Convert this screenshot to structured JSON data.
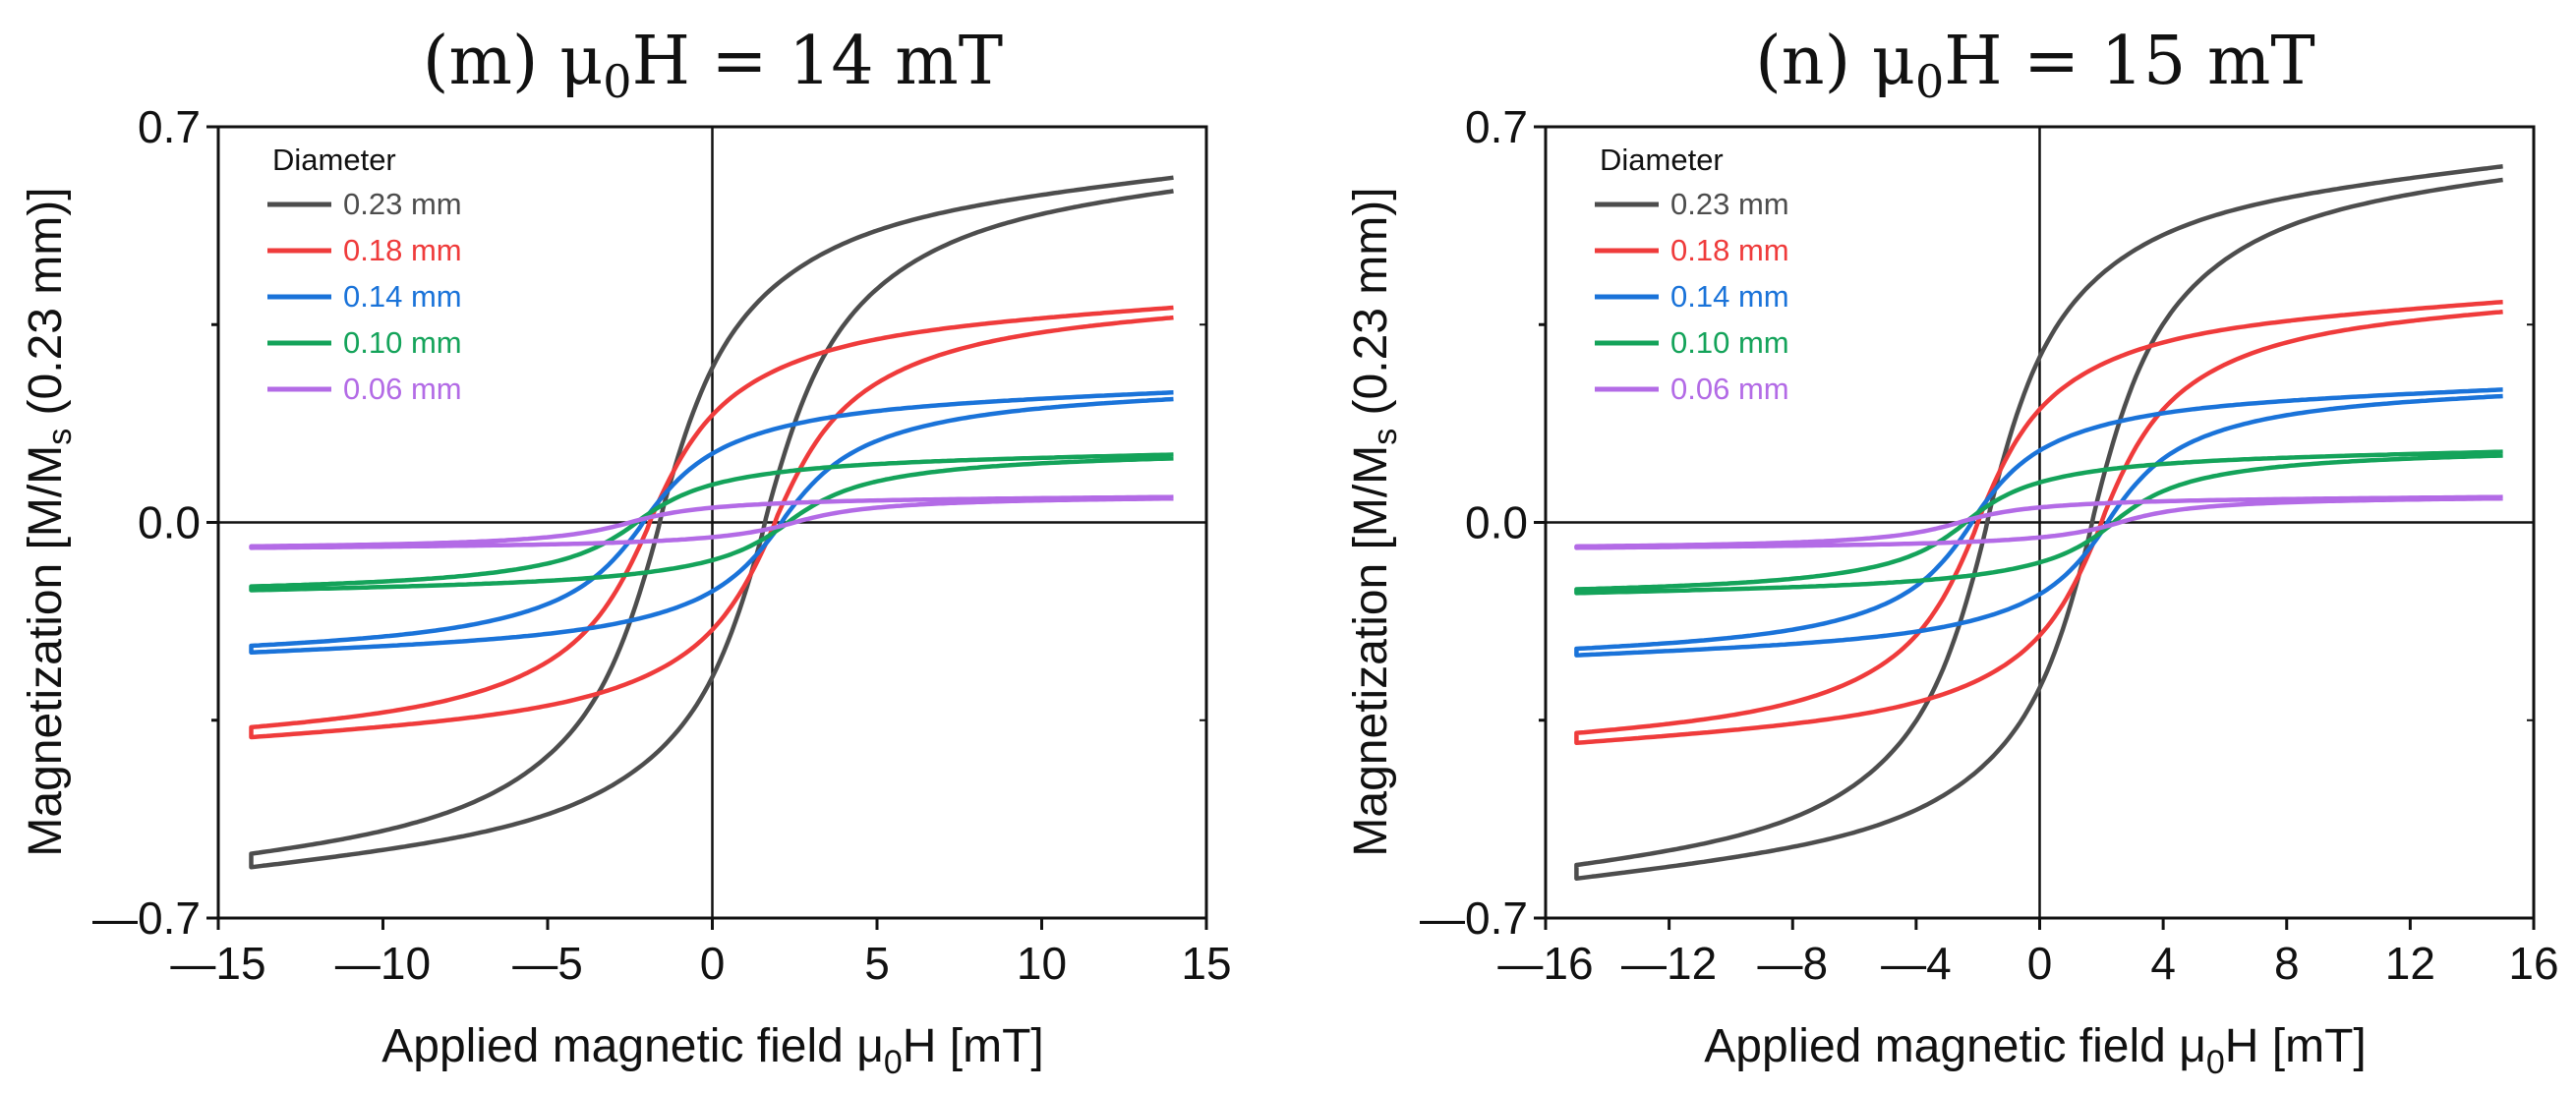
{
  "chart_data": [
    {
      "type": "line",
      "title": "(m) μ0H = 14 mT",
      "xlabel": "Applied magnetic field μ0H [mT]",
      "ylabel": "Magnetization [M/Ms (0.23 mm)]",
      "xlim": [
        -15,
        15
      ],
      "ylim": [
        -0.7,
        0.7
      ],
      "xticks": [
        -15,
        -10,
        -5,
        0,
        5,
        10,
        15
      ],
      "xtick_labels": [
        "—15",
        "—10",
        "—5",
        "0",
        "5",
        "10",
        "15"
      ],
      "yticks": [
        -0.7,
        0.0,
        0.7
      ],
      "ytick_labels": [
        "—0.7",
        "0.0",
        "0.7"
      ],
      "hmax": 14,
      "legend_title": "Diameter",
      "legend_position": "top-left",
      "series": [
        {
          "name": "0.23 mm",
          "color": "#4d4d4d",
          "ms": 0.61,
          "hc": 1.6
        },
        {
          "name": "0.18 mm",
          "color": "#ef3b3b",
          "ms": 0.38,
          "hc": 1.9
        },
        {
          "name": "0.14 mm",
          "color": "#1a73d9",
          "ms": 0.23,
          "hc": 2.1
        },
        {
          "name": "0.10 mm",
          "color": "#14a35a",
          "ms": 0.12,
          "hc": 2.3
        },
        {
          "name": "0.06 mm",
          "color": "#b36be6",
          "ms": 0.045,
          "hc": 2.5
        }
      ]
    },
    {
      "type": "line",
      "title": "(n) μ0H = 15 mT",
      "xlabel": "Applied magnetic field μ0H [mT]",
      "ylabel": "Magnetization [M/Ms (0.23 mm)]",
      "xlim": [
        -16,
        16
      ],
      "ylim": [
        -0.7,
        0.7
      ],
      "xticks": [
        -16,
        -12,
        -8,
        -4,
        0,
        4,
        8,
        12,
        16
      ],
      "xtick_labels": [
        "—16",
        "—12",
        "—8",
        "—4",
        "0",
        "4",
        "8",
        "12",
        "16"
      ],
      "yticks": [
        -0.7,
        0.0,
        0.7
      ],
      "ytick_labels": [
        "—0.7",
        "0.0",
        "0.7"
      ],
      "hmax": 15,
      "legend_title": "Diameter",
      "legend_position": "top-left",
      "series": [
        {
          "name": "0.23 mm",
          "color": "#4d4d4d",
          "ms": 0.63,
          "hc": 1.7
        },
        {
          "name": "0.18 mm",
          "color": "#ef3b3b",
          "ms": 0.39,
          "hc": 2.0
        },
        {
          "name": "0.14 mm",
          "color": "#1a73d9",
          "ms": 0.235,
          "hc": 2.2
        },
        {
          "name": "0.10 mm",
          "color": "#14a35a",
          "ms": 0.125,
          "hc": 2.4
        },
        {
          "name": "0.06 mm",
          "color": "#b36be6",
          "ms": 0.045,
          "hc": 2.6
        }
      ]
    }
  ]
}
